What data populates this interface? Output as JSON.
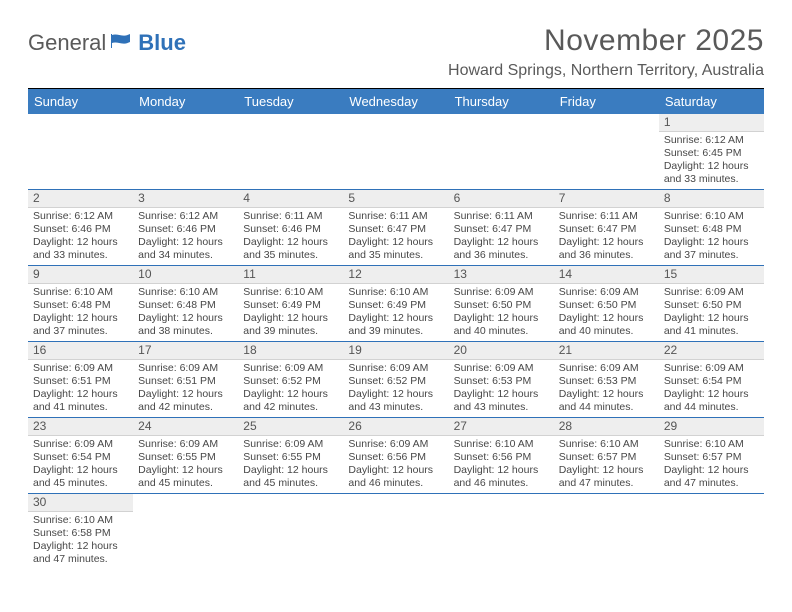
{
  "logo": {
    "text1": "General",
    "text2": "Blue"
  },
  "title": "November 2025",
  "location": "Howard Springs, Northern Territory, Australia",
  "colors": {
    "header_bg": "#3a7cc0",
    "header_text": "#ffffff",
    "row_divider": "#2f71b8",
    "daynum_bg": "#eeeeee",
    "title_text": "#595959",
    "body_text": "#474747"
  },
  "typography": {
    "title_fontsize": 30,
    "location_fontsize": 16,
    "weekday_fontsize": 13,
    "daynum_fontsize": 12,
    "detail_fontsize": 10.5
  },
  "weekdays": [
    "Sunday",
    "Monday",
    "Tuesday",
    "Wednesday",
    "Thursday",
    "Friday",
    "Saturday"
  ],
  "weeks": [
    [
      null,
      null,
      null,
      null,
      null,
      null,
      {
        "n": "1",
        "sunrise": "Sunrise: 6:12 AM",
        "sunset": "Sunset: 6:45 PM",
        "daylight": "Daylight: 12 hours and 33 minutes."
      }
    ],
    [
      {
        "n": "2",
        "sunrise": "Sunrise: 6:12 AM",
        "sunset": "Sunset: 6:46 PM",
        "daylight": "Daylight: 12 hours and 33 minutes."
      },
      {
        "n": "3",
        "sunrise": "Sunrise: 6:12 AM",
        "sunset": "Sunset: 6:46 PM",
        "daylight": "Daylight: 12 hours and 34 minutes."
      },
      {
        "n": "4",
        "sunrise": "Sunrise: 6:11 AM",
        "sunset": "Sunset: 6:46 PM",
        "daylight": "Daylight: 12 hours and 35 minutes."
      },
      {
        "n": "5",
        "sunrise": "Sunrise: 6:11 AM",
        "sunset": "Sunset: 6:47 PM",
        "daylight": "Daylight: 12 hours and 35 minutes."
      },
      {
        "n": "6",
        "sunrise": "Sunrise: 6:11 AM",
        "sunset": "Sunset: 6:47 PM",
        "daylight": "Daylight: 12 hours and 36 minutes."
      },
      {
        "n": "7",
        "sunrise": "Sunrise: 6:11 AM",
        "sunset": "Sunset: 6:47 PM",
        "daylight": "Daylight: 12 hours and 36 minutes."
      },
      {
        "n": "8",
        "sunrise": "Sunrise: 6:10 AM",
        "sunset": "Sunset: 6:48 PM",
        "daylight": "Daylight: 12 hours and 37 minutes."
      }
    ],
    [
      {
        "n": "9",
        "sunrise": "Sunrise: 6:10 AM",
        "sunset": "Sunset: 6:48 PM",
        "daylight": "Daylight: 12 hours and 37 minutes."
      },
      {
        "n": "10",
        "sunrise": "Sunrise: 6:10 AM",
        "sunset": "Sunset: 6:48 PM",
        "daylight": "Daylight: 12 hours and 38 minutes."
      },
      {
        "n": "11",
        "sunrise": "Sunrise: 6:10 AM",
        "sunset": "Sunset: 6:49 PM",
        "daylight": "Daylight: 12 hours and 39 minutes."
      },
      {
        "n": "12",
        "sunrise": "Sunrise: 6:10 AM",
        "sunset": "Sunset: 6:49 PM",
        "daylight": "Daylight: 12 hours and 39 minutes."
      },
      {
        "n": "13",
        "sunrise": "Sunrise: 6:09 AM",
        "sunset": "Sunset: 6:50 PM",
        "daylight": "Daylight: 12 hours and 40 minutes."
      },
      {
        "n": "14",
        "sunrise": "Sunrise: 6:09 AM",
        "sunset": "Sunset: 6:50 PM",
        "daylight": "Daylight: 12 hours and 40 minutes."
      },
      {
        "n": "15",
        "sunrise": "Sunrise: 6:09 AM",
        "sunset": "Sunset: 6:50 PM",
        "daylight": "Daylight: 12 hours and 41 minutes."
      }
    ],
    [
      {
        "n": "16",
        "sunrise": "Sunrise: 6:09 AM",
        "sunset": "Sunset: 6:51 PM",
        "daylight": "Daylight: 12 hours and 41 minutes."
      },
      {
        "n": "17",
        "sunrise": "Sunrise: 6:09 AM",
        "sunset": "Sunset: 6:51 PM",
        "daylight": "Daylight: 12 hours and 42 minutes."
      },
      {
        "n": "18",
        "sunrise": "Sunrise: 6:09 AM",
        "sunset": "Sunset: 6:52 PM",
        "daylight": "Daylight: 12 hours and 42 minutes."
      },
      {
        "n": "19",
        "sunrise": "Sunrise: 6:09 AM",
        "sunset": "Sunset: 6:52 PM",
        "daylight": "Daylight: 12 hours and 43 minutes."
      },
      {
        "n": "20",
        "sunrise": "Sunrise: 6:09 AM",
        "sunset": "Sunset: 6:53 PM",
        "daylight": "Daylight: 12 hours and 43 minutes."
      },
      {
        "n": "21",
        "sunrise": "Sunrise: 6:09 AM",
        "sunset": "Sunset: 6:53 PM",
        "daylight": "Daylight: 12 hours and 44 minutes."
      },
      {
        "n": "22",
        "sunrise": "Sunrise: 6:09 AM",
        "sunset": "Sunset: 6:54 PM",
        "daylight": "Daylight: 12 hours and 44 minutes."
      }
    ],
    [
      {
        "n": "23",
        "sunrise": "Sunrise: 6:09 AM",
        "sunset": "Sunset: 6:54 PM",
        "daylight": "Daylight: 12 hours and 45 minutes."
      },
      {
        "n": "24",
        "sunrise": "Sunrise: 6:09 AM",
        "sunset": "Sunset: 6:55 PM",
        "daylight": "Daylight: 12 hours and 45 minutes."
      },
      {
        "n": "25",
        "sunrise": "Sunrise: 6:09 AM",
        "sunset": "Sunset: 6:55 PM",
        "daylight": "Daylight: 12 hours and 45 minutes."
      },
      {
        "n": "26",
        "sunrise": "Sunrise: 6:09 AM",
        "sunset": "Sunset: 6:56 PM",
        "daylight": "Daylight: 12 hours and 46 minutes."
      },
      {
        "n": "27",
        "sunrise": "Sunrise: 6:10 AM",
        "sunset": "Sunset: 6:56 PM",
        "daylight": "Daylight: 12 hours and 46 minutes."
      },
      {
        "n": "28",
        "sunrise": "Sunrise: 6:10 AM",
        "sunset": "Sunset: 6:57 PM",
        "daylight": "Daylight: 12 hours and 47 minutes."
      },
      {
        "n": "29",
        "sunrise": "Sunrise: 6:10 AM",
        "sunset": "Sunset: 6:57 PM",
        "daylight": "Daylight: 12 hours and 47 minutes."
      }
    ],
    [
      {
        "n": "30",
        "sunrise": "Sunrise: 6:10 AM",
        "sunset": "Sunset: 6:58 PM",
        "daylight": "Daylight: 12 hours and 47 minutes."
      },
      null,
      null,
      null,
      null,
      null,
      null
    ]
  ]
}
